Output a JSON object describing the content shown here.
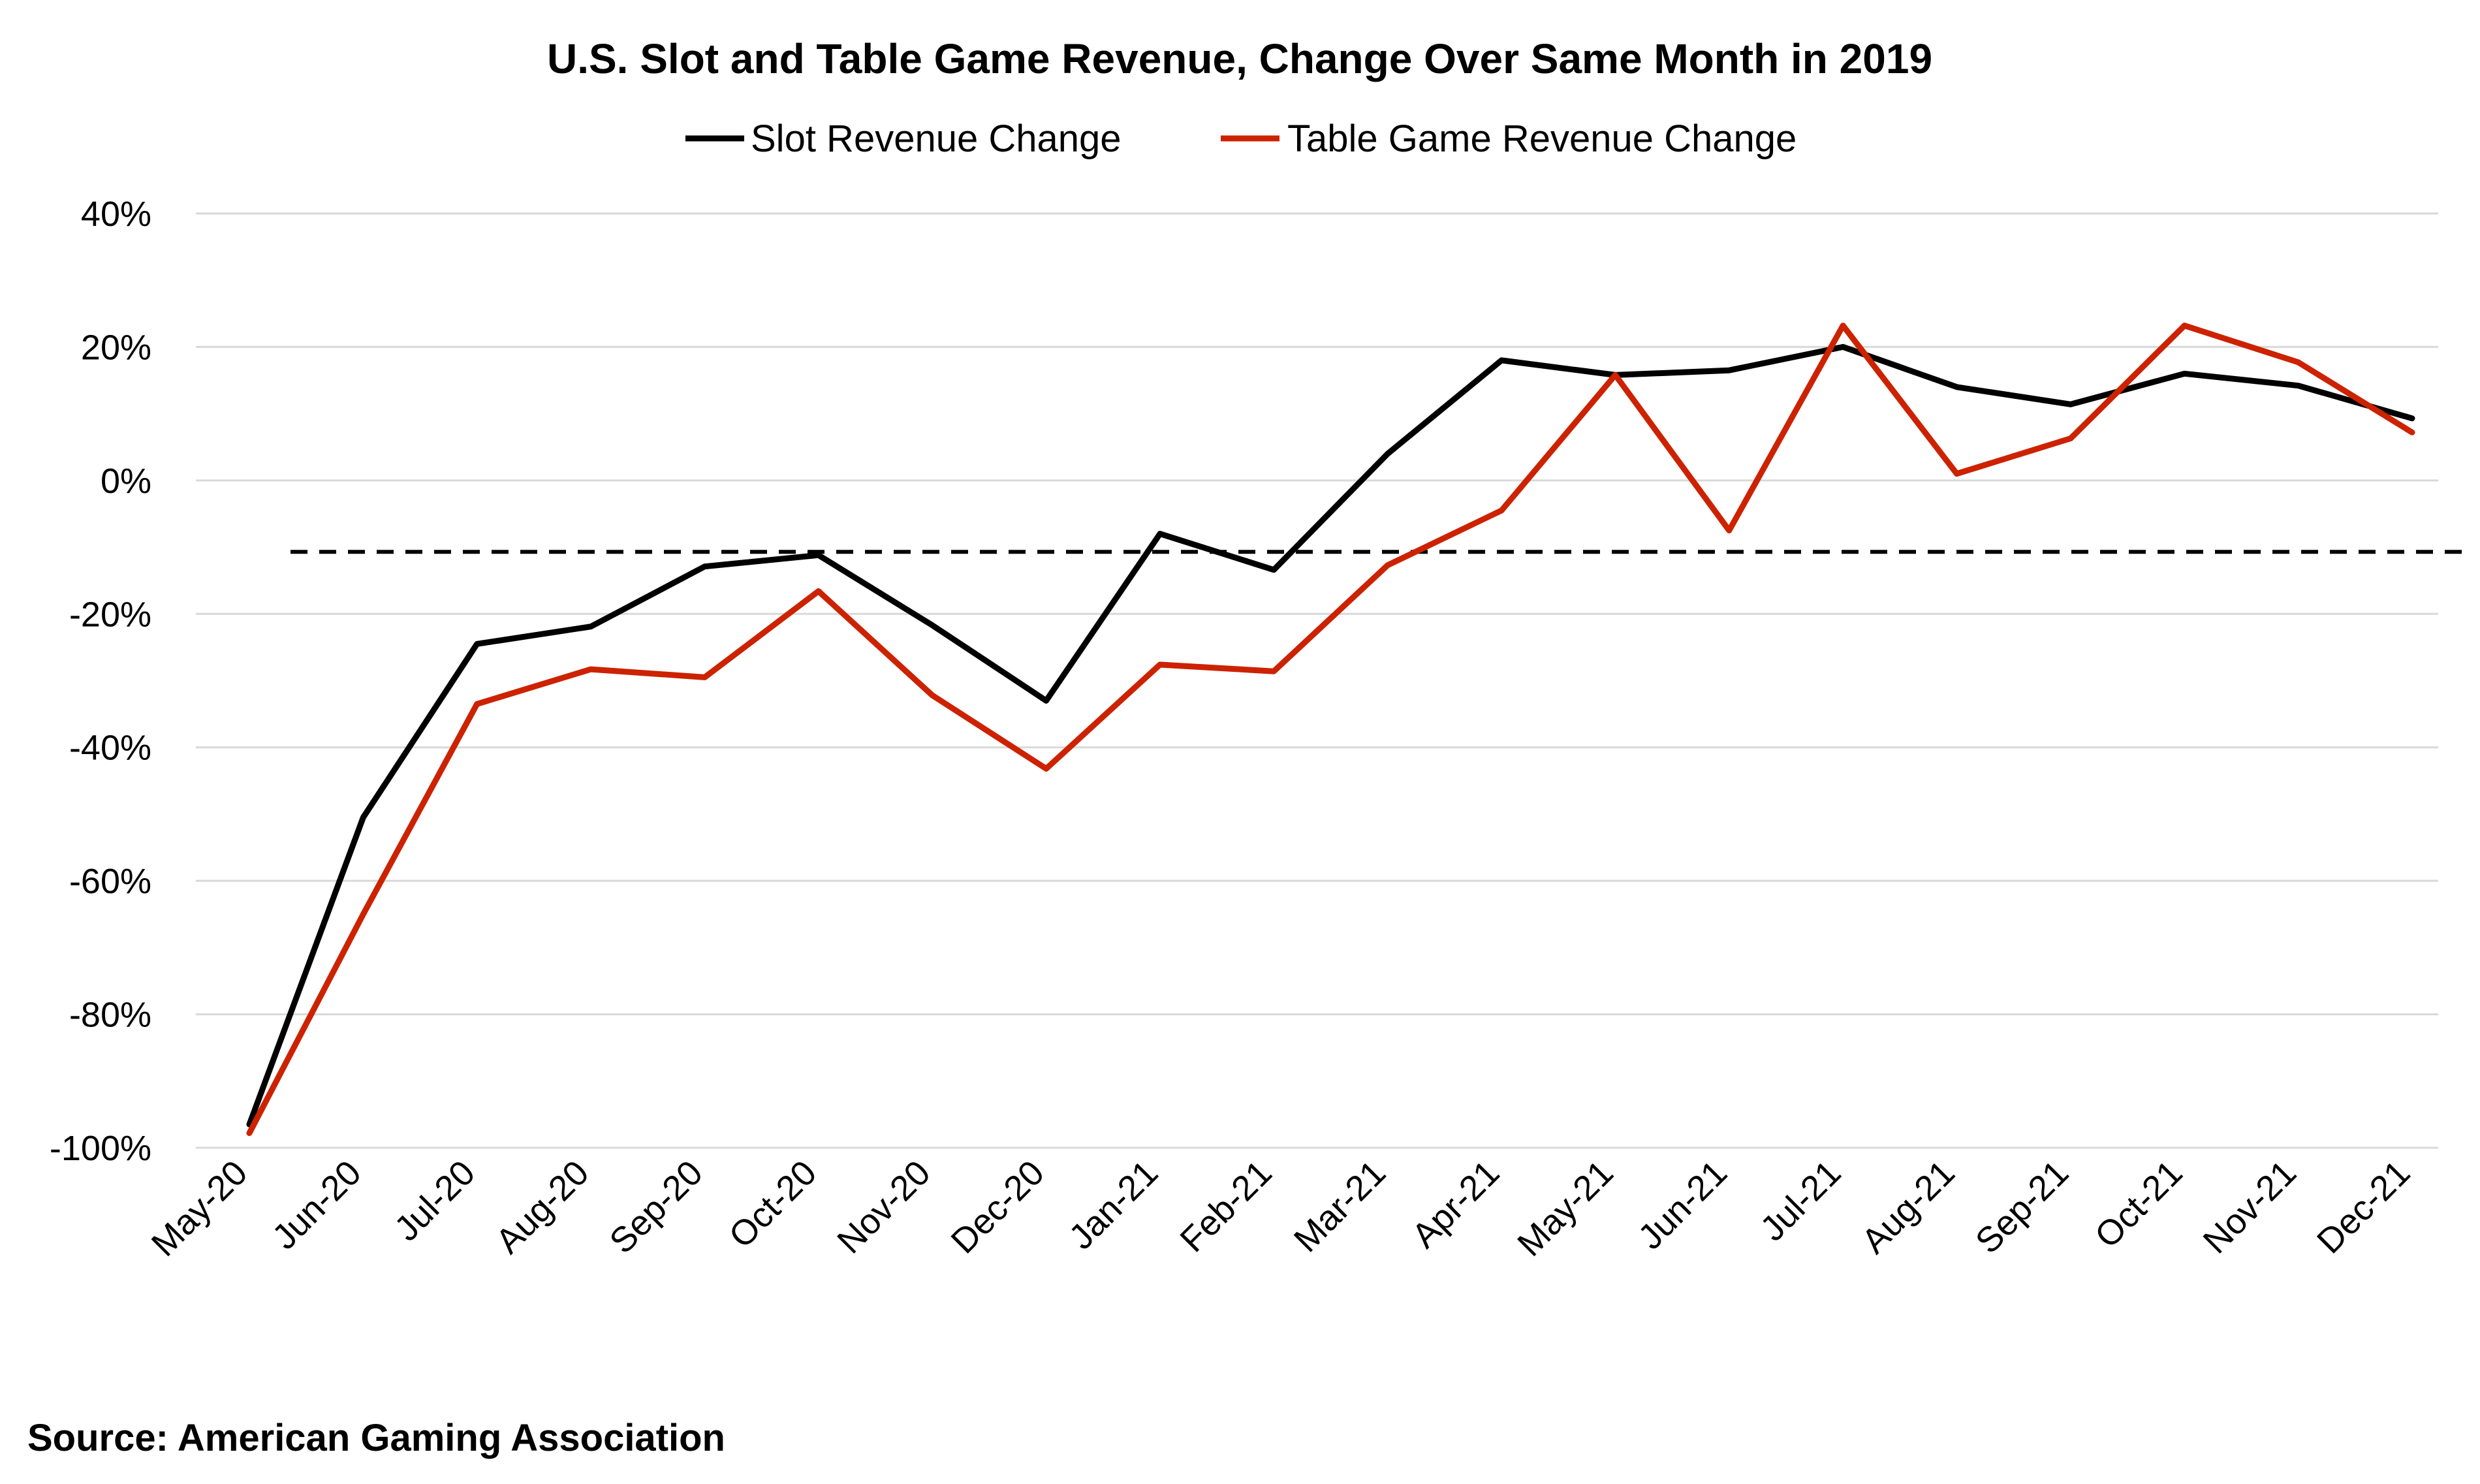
{
  "chart_data": {
    "type": "line",
    "title": "U.S. Slot and Table Game Revenue, Change Over Same Month in 2019",
    "xlabel": "",
    "ylabel": "",
    "categories": [
      "May-20",
      "Jun-20",
      "Jul-20",
      "Aug-20",
      "Sep-20",
      "Oct-20",
      "Nov-20",
      "Dec-20",
      "Jan-21",
      "Feb-21",
      "Mar-21",
      "Apr-21",
      "May-21",
      "Jun-21",
      "Jul-21",
      "Aug-21",
      "Sep-21",
      "Oct-21",
      "Nov-21",
      "Dec-21"
    ],
    "ylim": [
      -100,
      40
    ],
    "yticks": [
      40,
      20,
      0,
      -20,
      -40,
      -60,
      -80,
      -100
    ],
    "ytick_labels": [
      "40%",
      "20%",
      "0%",
      "-20%",
      "-40%",
      "-60%",
      "-80%",
      "-100%"
    ],
    "grid": true,
    "legend_position": "top-center",
    "series": [
      {
        "name": "Slot Revenue Change",
        "color": "#000000",
        "values": [
          -96.5,
          -50.5,
          -24.5,
          -21.9,
          -12.9,
          -11.2,
          -21.7,
          -33.0,
          -8.0,
          -13.4,
          4.0,
          18.0,
          15.8,
          16.5,
          20.0,
          14.0,
          11.4,
          16.0,
          14.2,
          9.3
        ]
      },
      {
        "name": "Table Game Revenue Change",
        "color": "#cc2200",
        "values": [
          -97.8,
          -65.0,
          -33.5,
          -28.3,
          -29.5,
          -16.6,
          -32.2,
          -43.2,
          -27.6,
          -28.6,
          -12.7,
          -4.5,
          15.8,
          -7.5,
          23.2,
          1.0,
          6.3,
          23.2,
          17.7,
          7.2
        ]
      }
    ],
    "reference_line": {
      "value": -10.7,
      "style": "dashed",
      "color": "#000000"
    }
  },
  "source": "Source: American Gaming Association"
}
